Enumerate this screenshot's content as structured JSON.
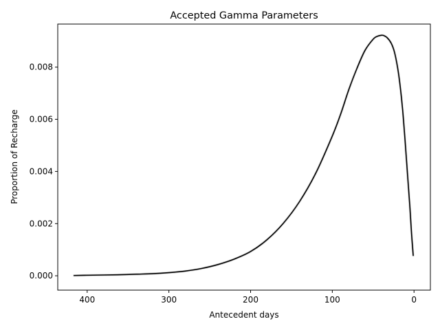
{
  "chart_data": {
    "type": "line",
    "title": "Accepted Gamma Parameters",
    "xlabel": "Antecedent days",
    "ylabel": "Proportion of Recharge",
    "xlim": [
      436,
      -20
    ],
    "ylim": [
      -0.00055,
      0.00965
    ],
    "x_inverted": true,
    "grid": false,
    "xticks": [
      400,
      300,
      200,
      100,
      0
    ],
    "xtick_labels": [
      "400",
      "300",
      "200",
      "100",
      "0"
    ],
    "yticks": [
      0.0,
      0.002,
      0.004,
      0.006,
      0.008
    ],
    "ytick_labels": [
      "0.000",
      "0.002",
      "0.004",
      "0.006",
      "0.008"
    ],
    "series": [
      {
        "color": "#000000",
        "x": [
          416,
          400,
          380,
          360,
          340,
          320,
          300,
          280,
          260,
          240,
          220,
          200,
          180,
          160,
          140,
          120,
          100,
          90,
          80,
          70,
          60,
          50,
          45,
          40,
          37,
          33,
          28,
          24,
          20,
          17,
          14,
          11,
          8,
          5,
          3,
          1
        ],
        "y": [
          1e-05,
          2e-05,
          3e-05,
          4e-05,
          6e-05,
          8e-05,
          0.00012,
          0.00018,
          0.00028,
          0.00043,
          0.00064,
          0.00093,
          0.00138,
          0.00201,
          0.00285,
          0.00395,
          0.00536,
          0.00618,
          0.00712,
          0.00794,
          0.00864,
          0.00907,
          0.00918,
          0.00922,
          0.00921,
          0.00913,
          0.00892,
          0.00858,
          0.00796,
          0.00728,
          0.00638,
          0.0052,
          0.0039,
          0.0026,
          0.0016,
          0.00078
        ]
      }
    ]
  }
}
